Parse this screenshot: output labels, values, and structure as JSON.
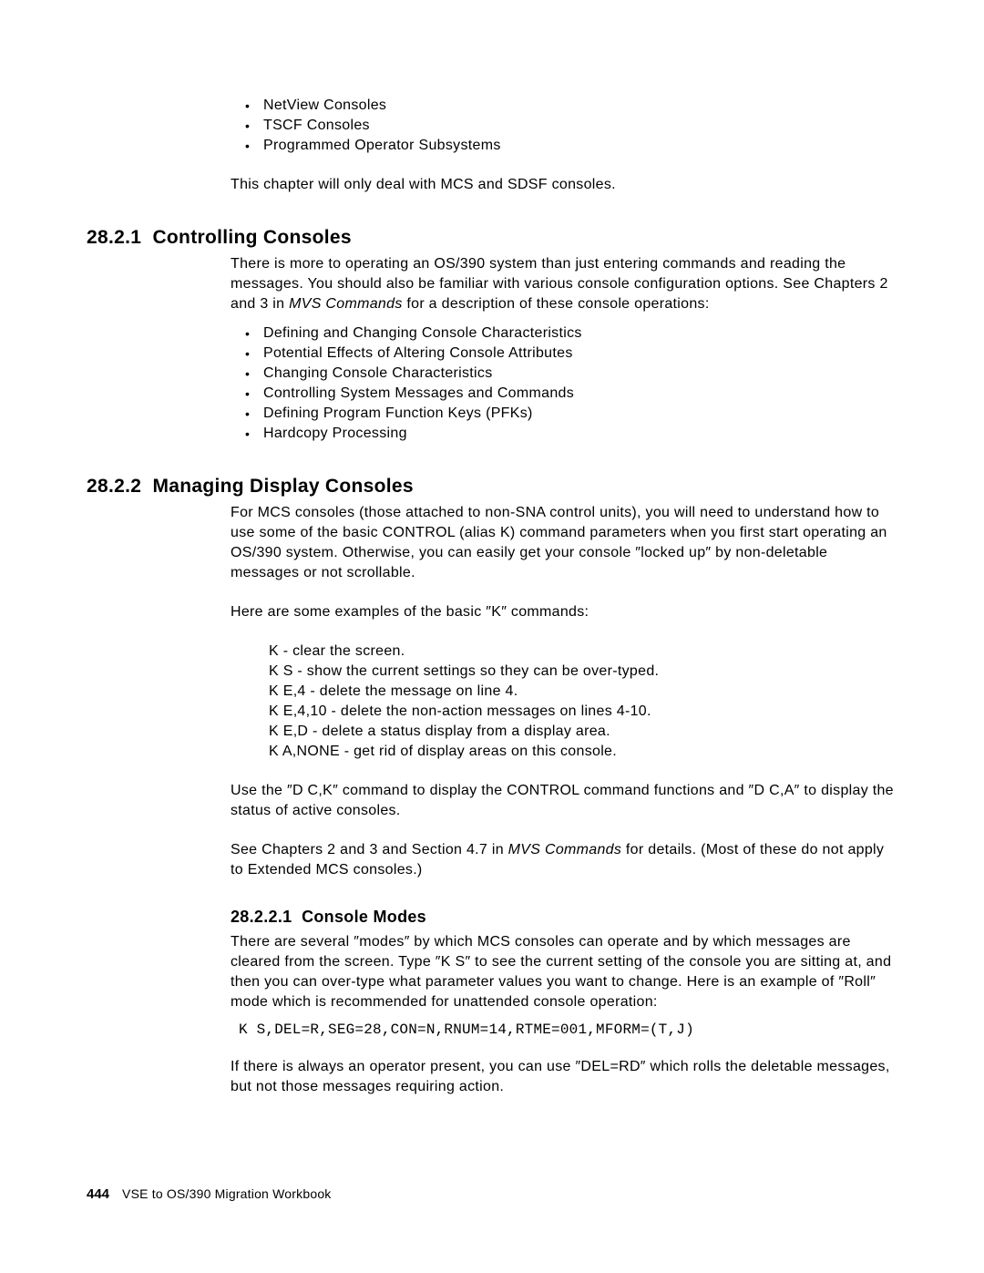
{
  "topList": {
    "items": [
      "NetView Consoles",
      "TSCF Consoles",
      "Programmed Operator Subsystems"
    ]
  },
  "para1": "This chapter will only deal with MCS and SDSF consoles.",
  "section1": {
    "number": "28.2.1",
    "title": "Controlling Consoles",
    "para_a": "There is more to operating an OS/390 system than just entering commands and reading the messages. You should also be familiar with various console configuration options. See Chapters 2 and 3 in ",
    "para_italic": "MVS Commands",
    "para_b": " for a description of these console operations:",
    "bullets": [
      "Defining and Changing Console Characteristics",
      "Potential Effects of Altering Console Attributes",
      "Changing Console Characteristics",
      "Controlling System Messages and Commands",
      "Defining Program Function Keys (PFKs)",
      "Hardcopy Processing"
    ]
  },
  "section2": {
    "number": "28.2.2",
    "title": "Managing Display Consoles",
    "para1": "For MCS consoles (those attached to non-SNA control units), you will need to understand how to use some of the basic CONTROL (alias K) command parameters when you first start operating an OS/390 system.  Otherwise, you can easily get your console ″locked up″ by non-deletable messages or not scrollable.",
    "para2": "Here are some examples of the basic ″K″ commands:",
    "commands": [
      "K - clear the screen.",
      "K S - show the current settings so they can be over-typed.",
      "K E,4 - delete the message on line 4.",
      "K E,4,10 - delete the non-action messages on lines 4-10.",
      "K E,D - delete a status display from a display area.",
      "K A,NONE - get rid of display areas on this console."
    ],
    "para3": "Use the ″D C,K″ command to display the CONTROL command functions and ″D C,A″ to display the status of active consoles.",
    "para4_a": "See Chapters 2 and 3 and Section 4.7 in ",
    "para4_italic": "MVS Commands",
    "para4_b": " for details. (Most of these do not apply to Extended MCS consoles.)"
  },
  "section3": {
    "number": "28.2.2.1",
    "title": "Console Modes",
    "para1": "There are several ″modes″ by which MCS consoles can operate and by which messages are cleared from the screen. Type ″K S″ to see the current setting of the console you are sitting at, and then you can over-type what parameter values you want to change. Here is an example of ″Roll″ mode which is recommended for unattended console operation:",
    "code": "K S,DEL=R,SEG=28,CON=N,RNUM=14,RTME=001,MFORM=(T,J)",
    "para2": "If there is always an operator present, you can use ″DEL=RD″ which rolls the deletable messages, but not those messages requiring action."
  },
  "footer": {
    "pageNum": "444",
    "bookTitle": "VSE to OS/390 Migration Workbook"
  }
}
